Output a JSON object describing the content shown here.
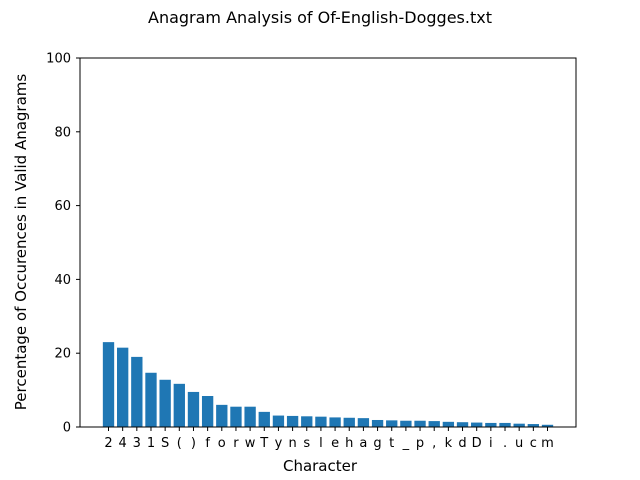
{
  "chart_data": {
    "type": "bar",
    "title": "Anagram Analysis of Of-English-Dogges.txt",
    "xlabel": "Character",
    "ylabel": "Percentage of Occurences in Valid Anagrams",
    "ylim": [
      0,
      100
    ],
    "yticks": [
      0,
      20,
      40,
      60,
      80,
      100
    ],
    "grid": false,
    "bar_color": "#1f77b4",
    "categories": [
      "2",
      "4",
      "3",
      "1",
      "S",
      "(",
      ")",
      "f",
      "o",
      "r",
      "w",
      "T",
      "y",
      "n",
      "s",
      "l",
      "e",
      "h",
      "a",
      "g",
      "t",
      "_",
      "p",
      ",",
      "k",
      "d",
      "D",
      "i",
      ".",
      "u",
      "c",
      "m"
    ],
    "values": [
      23.0,
      21.5,
      19.0,
      14.7,
      12.8,
      11.7,
      9.5,
      8.4,
      6.0,
      5.5,
      5.5,
      4.1,
      3.1,
      3.0,
      2.9,
      2.8,
      2.6,
      2.5,
      2.4,
      1.9,
      1.8,
      1.7,
      1.7,
      1.6,
      1.4,
      1.3,
      1.2,
      1.1,
      1.1,
      0.9,
      0.8,
      0.6
    ]
  }
}
